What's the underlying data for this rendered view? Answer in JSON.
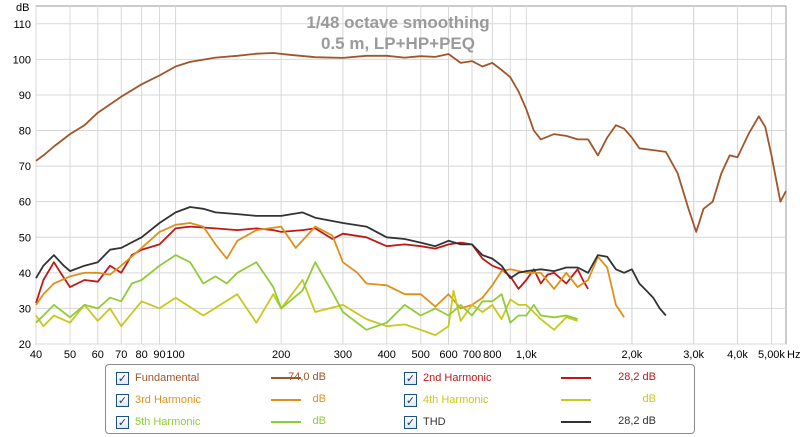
{
  "title_lines": [
    "1/48 octave smoothing",
    "0.5 m, LP+HP+PEQ"
  ],
  "axis_unit_y": "dB",
  "axis_unit_x": "Hz",
  "x_tick_labels": [
    "40",
    "50",
    "60",
    "70",
    "80",
    "90",
    "100",
    "200",
    "300",
    "400",
    "500",
    "600",
    "700",
    "800",
    "1,0k",
    "2,0k",
    "3,0k",
    "4,0k",
    "5,00k"
  ],
  "y_tick_labels": [
    "20",
    "30",
    "40",
    "50",
    "60",
    "70",
    "80",
    "90",
    "100",
    "110"
  ],
  "chart_data": {
    "type": "line",
    "title": "1/48 octave smoothing",
    "subtitle": "0.5 m, LP+HP+PEQ",
    "xlabel": "Hz",
    "ylabel": "dB",
    "x_scale": "log",
    "xlim": [
      40,
      5500
    ],
    "ylim": [
      20,
      115
    ],
    "grid": true,
    "x_ticks": [
      40,
      50,
      60,
      70,
      80,
      90,
      100,
      200,
      300,
      400,
      500,
      600,
      700,
      800,
      1000,
      2000,
      3000,
      4000,
      5000
    ],
    "y_ticks": [
      20,
      30,
      40,
      50,
      60,
      70,
      80,
      90,
      100,
      110
    ],
    "series": [
      {
        "name": "Fundamental",
        "color": "#a0562a",
        "points": [
          [
            40,
            71.5
          ],
          [
            42,
            73
          ],
          [
            45,
            75.5
          ],
          [
            50,
            79
          ],
          [
            55,
            81.5
          ],
          [
            60,
            85
          ],
          [
            70,
            89.5
          ],
          [
            80,
            93
          ],
          [
            90,
            95.5
          ],
          [
            100,
            98
          ],
          [
            110,
            99.3
          ],
          [
            130,
            100.5
          ],
          [
            150,
            101
          ],
          [
            170,
            101.6
          ],
          [
            190,
            101.8
          ],
          [
            210,
            101.3
          ],
          [
            250,
            100.6
          ],
          [
            300,
            100.4
          ],
          [
            350,
            101
          ],
          [
            400,
            101
          ],
          [
            450,
            100.5
          ],
          [
            500,
            100.9
          ],
          [
            550,
            100.7
          ],
          [
            600,
            101.5
          ],
          [
            650,
            99
          ],
          [
            700,
            99.5
          ],
          [
            750,
            98
          ],
          [
            800,
            99
          ],
          [
            850,
            97
          ],
          [
            900,
            95
          ],
          [
            950,
            91
          ],
          [
            1000,
            86
          ],
          [
            1050,
            80
          ],
          [
            1100,
            77.5
          ],
          [
            1200,
            79
          ],
          [
            1300,
            78.5
          ],
          [
            1400,
            77.5
          ],
          [
            1500,
            77.5
          ],
          [
            1600,
            73
          ],
          [
            1700,
            78
          ],
          [
            1800,
            81.5
          ],
          [
            1900,
            80.5
          ],
          [
            2000,
            78
          ],
          [
            2100,
            75
          ],
          [
            2300,
            74.5
          ],
          [
            2500,
            74
          ],
          [
            2700,
            68
          ],
          [
            2900,
            58
          ],
          [
            3050,
            51.5
          ],
          [
            3200,
            58
          ],
          [
            3400,
            60
          ],
          [
            3600,
            68
          ],
          [
            3800,
            73
          ],
          [
            4000,
            72.5
          ],
          [
            4300,
            79
          ],
          [
            4600,
            84
          ],
          [
            4800,
            81
          ],
          [
            5000,
            73
          ],
          [
            5300,
            60
          ],
          [
            5500,
            63
          ]
        ]
      },
      {
        "name": "2nd Harmonic",
        "color": "#c01818",
        "points": [
          [
            40,
            31.5
          ],
          [
            42,
            38
          ],
          [
            45,
            43
          ],
          [
            47,
            40
          ],
          [
            50,
            36
          ],
          [
            55,
            38
          ],
          [
            60,
            37.5
          ],
          [
            65,
            42
          ],
          [
            70,
            40
          ],
          [
            75,
            45
          ],
          [
            80,
            46.5
          ],
          [
            90,
            48
          ],
          [
            100,
            52.5
          ],
          [
            110,
            53
          ],
          [
            130,
            52.5
          ],
          [
            150,
            52
          ],
          [
            170,
            52.5
          ],
          [
            190,
            52
          ],
          [
            200,
            51.5
          ],
          [
            230,
            52
          ],
          [
            250,
            52.5
          ],
          [
            280,
            49.5
          ],
          [
            300,
            51
          ],
          [
            350,
            50
          ],
          [
            400,
            47.5
          ],
          [
            450,
            48
          ],
          [
            500,
            47.5
          ],
          [
            550,
            46.8
          ],
          [
            600,
            48
          ],
          [
            650,
            48.5
          ],
          [
            700,
            48
          ],
          [
            750,
            44
          ],
          [
            800,
            42
          ],
          [
            850,
            41
          ],
          [
            900,
            39
          ],
          [
            950,
            35.5
          ],
          [
            1000,
            38
          ],
          [
            1050,
            41
          ],
          [
            1100,
            37
          ],
          [
            1150,
            39.5
          ],
          [
            1200,
            40
          ],
          [
            1300,
            37
          ],
          [
            1400,
            41
          ],
          [
            1450,
            38
          ],
          [
            1500,
            35.5
          ]
        ]
      },
      {
        "name": "3rd Harmonic",
        "color": "#e0901a",
        "points": [
          [
            40,
            31
          ],
          [
            42,
            34
          ],
          [
            45,
            37
          ],
          [
            50,
            39
          ],
          [
            55,
            40
          ],
          [
            60,
            40
          ],
          [
            65,
            39.5
          ],
          [
            70,
            42
          ],
          [
            80,
            47
          ],
          [
            90,
            51.5
          ],
          [
            100,
            53.5
          ],
          [
            110,
            54
          ],
          [
            120,
            53
          ],
          [
            130,
            48
          ],
          [
            140,
            44
          ],
          [
            150,
            49
          ],
          [
            170,
            52
          ],
          [
            200,
            53
          ],
          [
            220,
            47
          ],
          [
            250,
            53
          ],
          [
            280,
            50.5
          ],
          [
            300,
            43
          ],
          [
            330,
            40
          ],
          [
            350,
            37
          ],
          [
            400,
            36.5
          ],
          [
            450,
            34
          ],
          [
            500,
            34
          ],
          [
            550,
            30.5
          ],
          [
            600,
            34
          ],
          [
            650,
            30
          ],
          [
            700,
            31
          ],
          [
            750,
            33
          ],
          [
            800,
            36.5
          ],
          [
            850,
            40.5
          ],
          [
            900,
            41
          ],
          [
            1000,
            40
          ],
          [
            1100,
            40
          ],
          [
            1200,
            35.5
          ],
          [
            1300,
            40
          ],
          [
            1400,
            36
          ],
          [
            1500,
            38
          ],
          [
            1600,
            44.5
          ],
          [
            1700,
            41.5
          ],
          [
            1800,
            31
          ],
          [
            1900,
            27.5
          ]
        ]
      },
      {
        "name": "4th Harmonic",
        "color": "#c8c820",
        "points": [
          [
            40,
            28
          ],
          [
            42,
            25
          ],
          [
            45,
            28
          ],
          [
            50,
            26
          ],
          [
            55,
            31
          ],
          [
            60,
            26.5
          ],
          [
            65,
            30
          ],
          [
            70,
            25
          ],
          [
            80,
            32
          ],
          [
            90,
            30
          ],
          [
            100,
            33
          ],
          [
            120,
            28
          ],
          [
            150,
            34
          ],
          [
            170,
            26
          ],
          [
            190,
            34
          ],
          [
            200,
            30
          ],
          [
            230,
            38
          ],
          [
            250,
            29
          ],
          [
            300,
            31
          ],
          [
            350,
            27
          ],
          [
            400,
            25
          ],
          [
            450,
            25.5
          ],
          [
            500,
            24
          ],
          [
            550,
            22.5
          ],
          [
            600,
            25
          ],
          [
            620,
            35
          ],
          [
            650,
            26.5
          ],
          [
            700,
            31
          ],
          [
            750,
            29
          ],
          [
            800,
            31
          ],
          [
            850,
            27
          ],
          [
            900,
            32.5
          ],
          [
            950,
            31
          ],
          [
            1000,
            31
          ],
          [
            1100,
            27
          ],
          [
            1200,
            24
          ],
          [
            1300,
            27.5
          ],
          [
            1400,
            26.5
          ]
        ]
      },
      {
        "name": "5th Harmonic",
        "color": "#90cc38",
        "points": [
          [
            40,
            26
          ],
          [
            42,
            28
          ],
          [
            45,
            31
          ],
          [
            50,
            27.5
          ],
          [
            55,
            31
          ],
          [
            60,
            30
          ],
          [
            65,
            33
          ],
          [
            70,
            32
          ],
          [
            75,
            37
          ],
          [
            80,
            38
          ],
          [
            90,
            42
          ],
          [
            100,
            45
          ],
          [
            110,
            43
          ],
          [
            120,
            37
          ],
          [
            130,
            39
          ],
          [
            140,
            37
          ],
          [
            150,
            40
          ],
          [
            170,
            43
          ],
          [
            190,
            36
          ],
          [
            200,
            30
          ],
          [
            230,
            35
          ],
          [
            250,
            43
          ],
          [
            280,
            34.5
          ],
          [
            300,
            29
          ],
          [
            350,
            24
          ],
          [
            400,
            26
          ],
          [
            450,
            31
          ],
          [
            500,
            28
          ],
          [
            550,
            30
          ],
          [
            600,
            28
          ],
          [
            650,
            31
          ],
          [
            700,
            28
          ],
          [
            750,
            32
          ],
          [
            800,
            32
          ],
          [
            850,
            34
          ],
          [
            900,
            26
          ],
          [
            950,
            28
          ],
          [
            1000,
            28
          ],
          [
            1050,
            31
          ],
          [
            1100,
            28
          ],
          [
            1200,
            27.5
          ],
          [
            1300,
            28
          ],
          [
            1400,
            27
          ]
        ]
      },
      {
        "name": "THD",
        "color": "#333333",
        "points": [
          [
            40,
            38.5
          ],
          [
            42,
            42
          ],
          [
            45,
            45
          ],
          [
            48,
            42
          ],
          [
            50,
            40.5
          ],
          [
            55,
            42
          ],
          [
            60,
            43
          ],
          [
            65,
            46.5
          ],
          [
            70,
            47
          ],
          [
            80,
            50
          ],
          [
            90,
            54
          ],
          [
            100,
            57
          ],
          [
            110,
            58.5
          ],
          [
            120,
            58
          ],
          [
            130,
            57
          ],
          [
            150,
            56.5
          ],
          [
            170,
            56
          ],
          [
            200,
            56
          ],
          [
            230,
            57
          ],
          [
            250,
            55.5
          ],
          [
            300,
            54
          ],
          [
            350,
            53
          ],
          [
            400,
            50
          ],
          [
            450,
            49.5
          ],
          [
            500,
            48.5
          ],
          [
            550,
            47.5
          ],
          [
            600,
            49
          ],
          [
            650,
            48
          ],
          [
            700,
            48
          ],
          [
            750,
            45
          ],
          [
            800,
            44
          ],
          [
            850,
            42
          ],
          [
            900,
            38.5
          ],
          [
            950,
            40
          ],
          [
            1000,
            40.5
          ],
          [
            1100,
            41
          ],
          [
            1200,
            40.5
          ],
          [
            1300,
            41.5
          ],
          [
            1400,
            41.5
          ],
          [
            1500,
            40
          ],
          [
            1600,
            45
          ],
          [
            1700,
            44.5
          ],
          [
            1800,
            41
          ],
          [
            1900,
            40
          ],
          [
            2000,
            41
          ],
          [
            2100,
            37
          ],
          [
            2200,
            35
          ],
          [
            2300,
            33
          ],
          [
            2400,
            30
          ],
          [
            2500,
            28
          ]
        ]
      }
    ]
  },
  "legend": {
    "rows": [
      [
        {
          "label": "Fundamental",
          "value": "74,0 dB",
          "color": "#a0562a",
          "checked": "✓"
        },
        {
          "label": "2nd Harmonic",
          "value": "28,2 dB",
          "color": "#c01818",
          "checked": "✓"
        }
      ],
      [
        {
          "label": "3rd Harmonic",
          "value": "dB",
          "color": "#e0901a",
          "checked": "✓"
        },
        {
          "label": "4th Harmonic",
          "value": "dB",
          "color": "#c8c820",
          "checked": "✓"
        }
      ],
      [
        {
          "label": "5th Harmonic",
          "value": "dB",
          "color": "#90cc38",
          "checked": "✓"
        },
        {
          "label": "THD",
          "value": "28,2 dB",
          "color": "#333333",
          "checked": "✓"
        }
      ]
    ]
  }
}
